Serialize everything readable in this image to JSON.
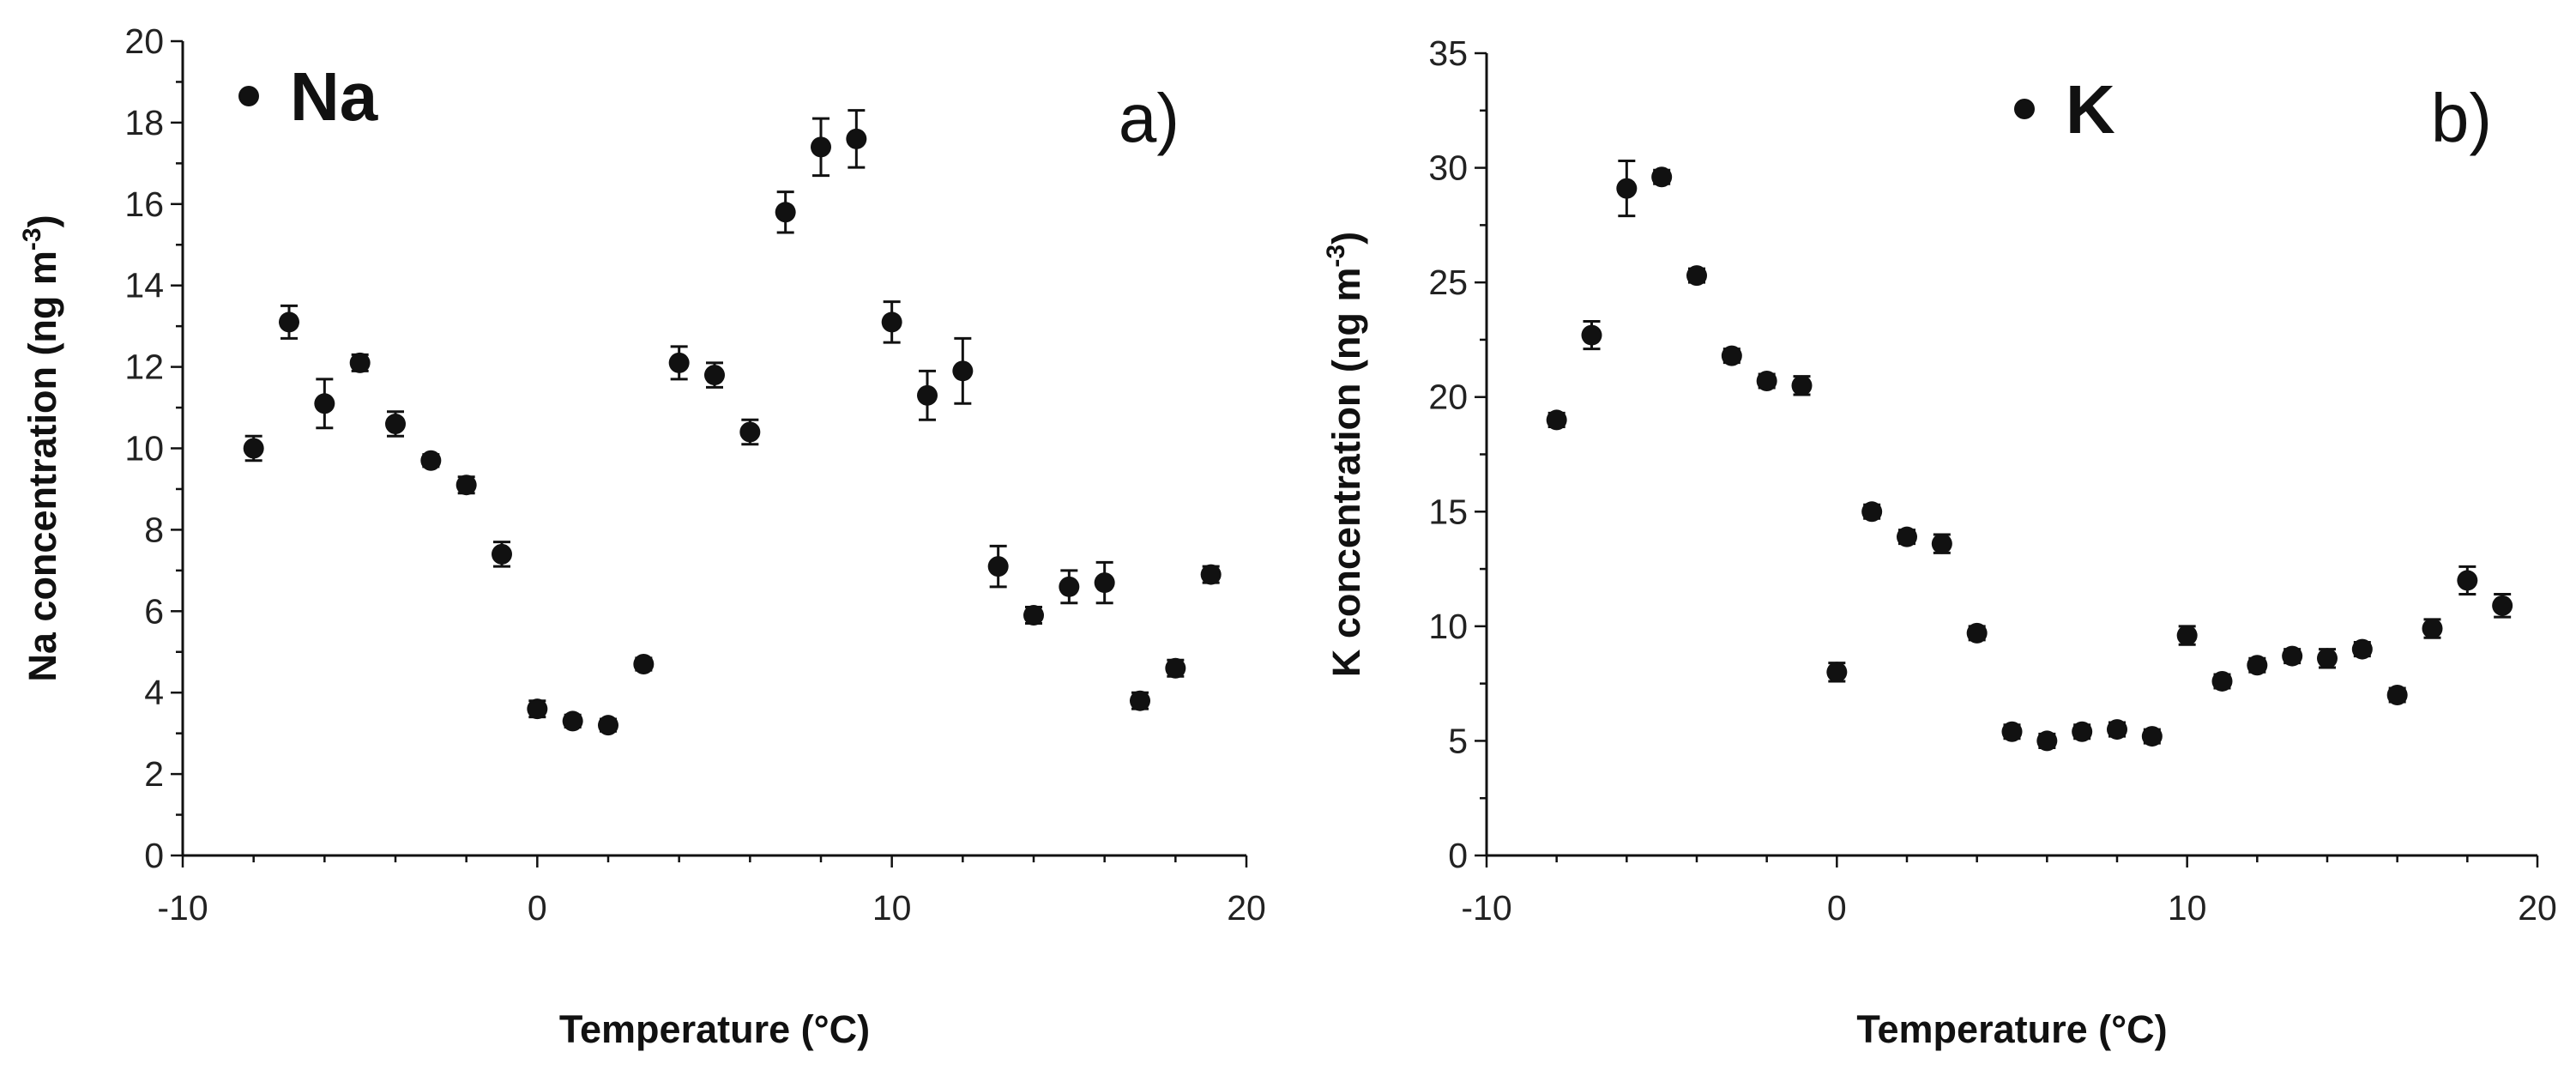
{
  "chart_data": [
    {
      "type": "scatter",
      "panel_label": "a)",
      "legend": "Na",
      "xlabel": "Temperature (°C)",
      "ylabel": "Na concentration (ng m",
      "ylabel_sup": "-3",
      "ylabel_close": ")",
      "xlim": [
        -10,
        20
      ],
      "ylim": [
        0,
        20
      ],
      "xticks": [
        -10,
        0,
        10,
        20
      ],
      "yticks": [
        0,
        2,
        4,
        6,
        8,
        10,
        12,
        14,
        16,
        18,
        20
      ],
      "x_tick_labels": [
        "-10",
        "0",
        "10",
        "20"
      ],
      "y_tick_labels": [
        "0",
        "2",
        "4",
        "6",
        "8",
        "10",
        "12",
        "14",
        "16",
        "18",
        "20"
      ],
      "series": [
        {
          "name": "Na",
          "x": [
            -8,
            -7,
            -6,
            -5,
            -4,
            -3,
            -2,
            -1,
            0,
            1,
            2,
            3,
            4,
            5,
            6,
            7,
            8,
            9,
            10,
            11,
            12,
            13,
            14,
            15,
            16,
            17,
            18,
            19
          ],
          "y": [
            10.0,
            13.1,
            11.1,
            12.1,
            10.6,
            9.7,
            9.1,
            7.4,
            3.6,
            3.3,
            3.2,
            4.7,
            12.1,
            11.8,
            10.4,
            15.8,
            17.4,
            17.6,
            13.1,
            11.3,
            11.9,
            7.1,
            5.9,
            6.6,
            6.7,
            3.8,
            4.6,
            6.9
          ],
          "err": [
            0.3,
            0.4,
            0.6,
            0.2,
            0.3,
            0.15,
            0.2,
            0.3,
            0.2,
            0.15,
            0.15,
            0.15,
            0.4,
            0.3,
            0.3,
            0.5,
            0.7,
            0.7,
            0.5,
            0.6,
            0.8,
            0.5,
            0.2,
            0.4,
            0.5,
            0.2,
            0.2,
            0.2
          ]
        }
      ]
    },
    {
      "type": "scatter",
      "panel_label": "b)",
      "legend": "K",
      "xlabel": "Temperature (°C)",
      "ylabel": "K concentration (ng m",
      "ylabel_sup": "-3",
      "ylabel_close": ")",
      "xlim": [
        -10,
        20
      ],
      "ylim": [
        0,
        35
      ],
      "xticks": [
        -10,
        0,
        10,
        20
      ],
      "yticks": [
        0,
        5,
        10,
        15,
        20,
        25,
        30,
        35
      ],
      "x_tick_labels": [
        "-10",
        "0",
        "10",
        "20"
      ],
      "y_tick_labels": [
        "0",
        "5",
        "10",
        "15",
        "20",
        "25",
        "30",
        "35"
      ],
      "series": [
        {
          "name": "K",
          "x": [
            -8,
            -7,
            -6,
            -5,
            -4,
            -3,
            -2,
            -1,
            0,
            1,
            2,
            3,
            4,
            5,
            6,
            7,
            8,
            9,
            10,
            11,
            12,
            13,
            14,
            15,
            16,
            17,
            18,
            19
          ],
          "y": [
            19.0,
            22.7,
            29.1,
            29.6,
            25.3,
            21.8,
            20.7,
            20.5,
            8.0,
            15.0,
            13.9,
            13.6,
            9.7,
            5.4,
            5.0,
            5.4,
            5.5,
            5.2,
            9.6,
            7.6,
            8.3,
            8.7,
            8.6,
            9.0,
            7.0,
            9.9,
            12.0,
            10.9
          ],
          "err": [
            0.3,
            0.6,
            1.2,
            0.3,
            0.3,
            0.3,
            0.3,
            0.4,
            0.4,
            0.3,
            0.3,
            0.4,
            0.3,
            0.3,
            0.3,
            0.3,
            0.3,
            0.3,
            0.4,
            0.3,
            0.3,
            0.3,
            0.4,
            0.3,
            0.3,
            0.4,
            0.6,
            0.5
          ]
        }
      ]
    }
  ]
}
